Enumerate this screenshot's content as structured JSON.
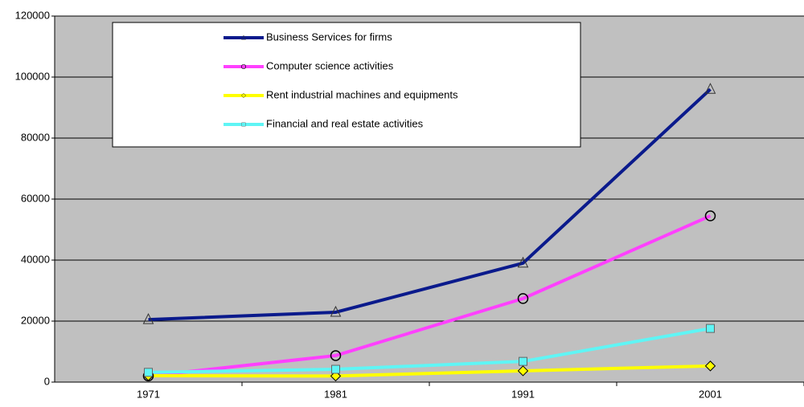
{
  "chart_data": {
    "type": "line",
    "categories": [
      "1971",
      "1981",
      "1991",
      "2001"
    ],
    "series": [
      {
        "name": "Business Services for firms",
        "color": "#0a1a8c",
        "marker": "triangle",
        "values": [
          20500,
          22900,
          39000,
          96000
        ]
      },
      {
        "name": "Computer science activities",
        "color": "#ff40ff",
        "marker": "circle",
        "values": [
          2000,
          8700,
          27400,
          54500
        ]
      },
      {
        "name": "Rent industrial machines and equipments",
        "color": "#ffff00",
        "marker": "diamond",
        "values": [
          2100,
          2000,
          3700,
          5300
        ]
      },
      {
        "name": "Financial and real estate activities",
        "color": "#5ff5f5",
        "marker": "square",
        "values": [
          3200,
          4200,
          6800,
          17600
        ]
      }
    ],
    "ylim": [
      0,
      120000
    ],
    "yticks": [
      0,
      20000,
      40000,
      60000,
      80000,
      100000,
      120000
    ],
    "grid": true,
    "legend": "upper left",
    "background": "#c0c0c0"
  }
}
